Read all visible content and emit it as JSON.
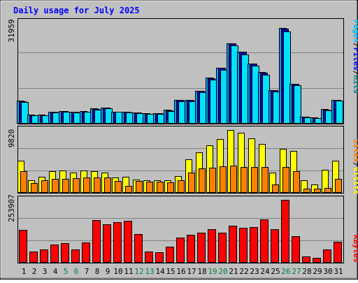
{
  "title": "Daily usage for July 2025",
  "colors": {
    "title": "#0000ff",
    "frame": "#000000",
    "background": "#c0c0c0",
    "grid": "#808080",
    "hits": "#00a0ff",
    "files": "#0000b0",
    "pages": "#00e0ff",
    "visits": "#ffff00",
    "sites": "#ff8000",
    "kbytes": "#ff0000",
    "weekend_label": "#008040",
    "weekday_label": "#000000"
  },
  "legend": {
    "top": [
      {
        "text": "Pages",
        "color": "#00c0ff"
      },
      {
        "text": "/",
        "color": "#000000"
      },
      {
        "text": "Files",
        "color": "#0000ff"
      },
      {
        "text": "/",
        "color": "#000000"
      },
      {
        "text": "Hits",
        "color": "#008080"
      }
    ],
    "middle": [
      {
        "text": "Sites",
        "color": "#ff8000"
      },
      {
        "text": "/",
        "color": "#000000"
      },
      {
        "text": "Visits",
        "color": "#ffff00"
      }
    ],
    "bottom": [
      {
        "text": "KBytes",
        "color": "#ff0000"
      }
    ]
  },
  "chart_data": [
    {
      "type": "bar",
      "name": "hits-files-pages",
      "categories": [
        "1",
        "2",
        "3",
        "4",
        "5",
        "6",
        "7",
        "8",
        "9",
        "10",
        "11",
        "12",
        "13",
        "14",
        "15",
        "16",
        "17",
        "18",
        "19",
        "20",
        "21",
        "22",
        "23",
        "24",
        "25",
        "26",
        "27",
        "28",
        "29",
        "30",
        "31"
      ],
      "weekend_days": [
        "5",
        "6",
        "12",
        "13",
        "19",
        "20",
        "26",
        "27"
      ],
      "ylim": [
        0,
        31959
      ],
      "y_max_label": "31959",
      "series": [
        {
          "name": "Hits",
          "values": [
            7100,
            2800,
            2800,
            3800,
            4000,
            3800,
            3900,
            4700,
            5000,
            3800,
            3700,
            3500,
            3200,
            3300,
            4300,
            7400,
            7400,
            10300,
            14300,
            17400,
            25100,
            22400,
            18700,
            16000,
            10500,
            29700,
            12400,
            2200,
            1900,
            4500,
            7500
          ]
        },
        {
          "name": "Files",
          "values": [
            7000,
            2700,
            2700,
            3700,
            3900,
            3700,
            3800,
            4600,
            4900,
            3700,
            3600,
            3400,
            3100,
            3200,
            4200,
            7300,
            7300,
            10200,
            14200,
            17300,
            25000,
            22300,
            18600,
            15900,
            10400,
            29600,
            12300,
            2100,
            1800,
            4400,
            7400
          ]
        },
        {
          "name": "Pages",
          "values": [
            6800,
            2600,
            2600,
            3500,
            3700,
            3500,
            3700,
            4400,
            4700,
            3600,
            3500,
            3300,
            3000,
            3100,
            4000,
            7000,
            7000,
            9800,
            13700,
            16800,
            24300,
            21600,
            18000,
            15300,
            10100,
            28800,
            11900,
            1900,
            1700,
            4200,
            7100
          ]
        }
      ]
    },
    {
      "type": "bar",
      "name": "visits-sites",
      "categories": [
        "1",
        "2",
        "3",
        "4",
        "5",
        "6",
        "7",
        "8",
        "9",
        "10",
        "11",
        "12",
        "13",
        "14",
        "15",
        "16",
        "17",
        "18",
        "19",
        "20",
        "21",
        "22",
        "23",
        "24",
        "25",
        "26",
        "27",
        "28",
        "29",
        "30",
        "31"
      ],
      "ylim": [
        0,
        9820
      ],
      "y_max_label": "9820",
      "series": [
        {
          "name": "Visits",
          "values": [
            4900,
            1900,
            2500,
            3300,
            3400,
            3100,
            3400,
            3300,
            3100,
            2400,
            2500,
            2000,
            1900,
            1900,
            1900,
            2600,
            5100,
            6200,
            7300,
            8200,
            9600,
            9200,
            8300,
            7500,
            3100,
            6700,
            6400,
            1900,
            1300,
            3500,
            4900
          ]
        },
        {
          "name": "Sites",
          "values": [
            3300,
            1500,
            1900,
            2100,
            2100,
            2200,
            2300,
            2300,
            2300,
            1800,
            1100,
            1800,
            1700,
            1700,
            1600,
            1900,
            3100,
            3700,
            3800,
            4100,
            4200,
            3900,
            4000,
            3900,
            1300,
            3900,
            3300,
            600,
            600,
            700,
            2100
          ]
        }
      ]
    },
    {
      "type": "bar",
      "name": "kbytes",
      "categories": [
        "1",
        "2",
        "3",
        "4",
        "5",
        "6",
        "7",
        "8",
        "9",
        "10",
        "11",
        "12",
        "13",
        "14",
        "15",
        "16",
        "17",
        "18",
        "19",
        "20",
        "21",
        "22",
        "23",
        "24",
        "25",
        "26",
        "27",
        "28",
        "29",
        "30",
        "31"
      ],
      "ylim": [
        0,
        253907
      ],
      "y_max_label": "253907",
      "series": [
        {
          "name": "KBytes",
          "values": [
            131000,
            44000,
            53000,
            73000,
            78000,
            52000,
            80000,
            168000,
            152000,
            160000,
            165000,
            112000,
            44000,
            42000,
            64000,
            99000,
            110000,
            120000,
            132000,
            118000,
            146000,
            138000,
            141000,
            172000,
            133000,
            248000,
            106000,
            25000,
            19000,
            52000,
            82000
          ]
        }
      ]
    }
  ]
}
